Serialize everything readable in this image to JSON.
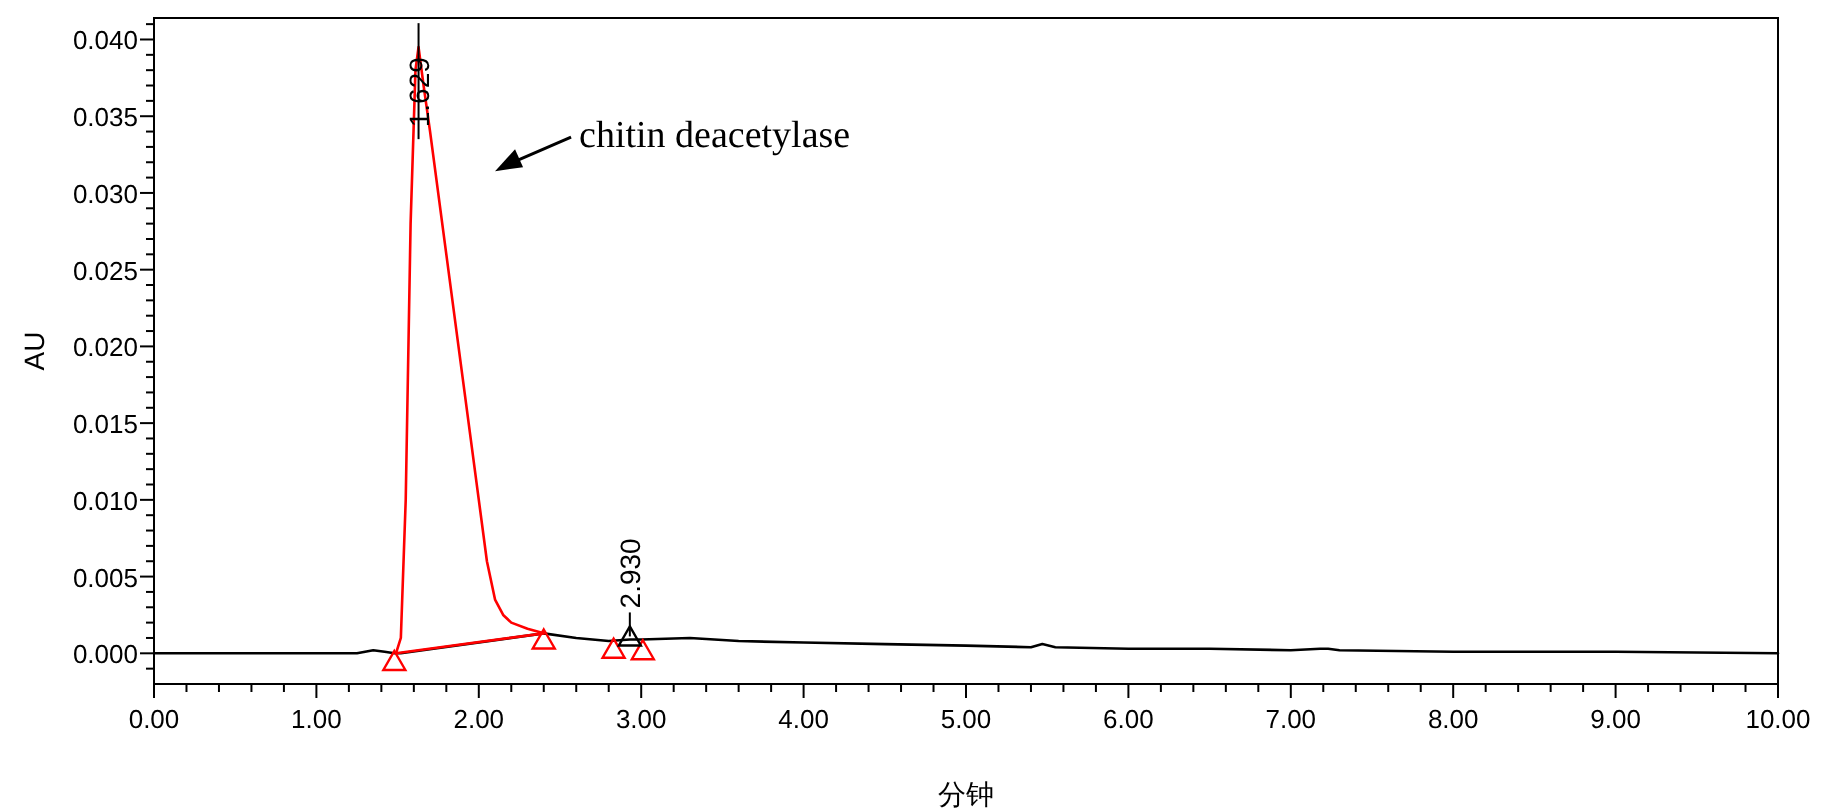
{
  "chart_data": {
    "type": "line",
    "xlabel": "分钟",
    "ylabel": "AU",
    "xlim": [
      0,
      10
    ],
    "ylim": [
      -0.002,
      0.0414
    ],
    "xticks": [
      {
        "value": 0,
        "label": "0.00"
      },
      {
        "value": 0.2,
        "label": null
      },
      {
        "value": 0.4,
        "label": null
      },
      {
        "value": 0.6,
        "label": null
      },
      {
        "value": 0.8,
        "label": null
      },
      {
        "value": 1,
        "label": "1.00"
      },
      {
        "value": 1.2,
        "label": null
      },
      {
        "value": 1.4,
        "label": null
      },
      {
        "value": 1.6,
        "label": null
      },
      {
        "value": 1.8,
        "label": null
      },
      {
        "value": 2,
        "label": "2.00"
      },
      {
        "value": 2.2,
        "label": null
      },
      {
        "value": 2.4,
        "label": null
      },
      {
        "value": 2.6,
        "label": null
      },
      {
        "value": 2.8,
        "label": null
      },
      {
        "value": 3,
        "label": "3.00"
      },
      {
        "value": 3.2,
        "label": null
      },
      {
        "value": 3.4,
        "label": null
      },
      {
        "value": 3.6,
        "label": null
      },
      {
        "value": 3.8,
        "label": null
      },
      {
        "value": 4,
        "label": "4.00"
      },
      {
        "value": 4.2,
        "label": null
      },
      {
        "value": 4.4,
        "label": null
      },
      {
        "value": 4.6,
        "label": null
      },
      {
        "value": 4.8,
        "label": null
      },
      {
        "value": 5,
        "label": "5.00"
      },
      {
        "value": 5.2,
        "label": null
      },
      {
        "value": 5.4,
        "label": null
      },
      {
        "value": 5.6,
        "label": null
      },
      {
        "value": 5.8,
        "label": null
      },
      {
        "value": 6,
        "label": "6.00"
      },
      {
        "value": 6.2,
        "label": null
      },
      {
        "value": 6.4,
        "label": null
      },
      {
        "value": 6.6,
        "label": null
      },
      {
        "value": 6.8,
        "label": null
      },
      {
        "value": 7,
        "label": "7.00"
      },
      {
        "value": 7.2,
        "label": null
      },
      {
        "value": 7.4,
        "label": null
      },
      {
        "value": 7.6,
        "label": null
      },
      {
        "value": 7.8,
        "label": null
      },
      {
        "value": 8,
        "label": "8.00"
      },
      {
        "value": 8.2,
        "label": null
      },
      {
        "value": 8.4,
        "label": null
      },
      {
        "value": 8.6,
        "label": null
      },
      {
        "value": 8.8,
        "label": null
      },
      {
        "value": 9,
        "label": "9.00"
      },
      {
        "value": 9.2,
        "label": null
      },
      {
        "value": 9.4,
        "label": null
      },
      {
        "value": 9.6,
        "label": null
      },
      {
        "value": 9.8,
        "label": null
      },
      {
        "value": 10,
        "label": "10.00"
      }
    ],
    "yticks": [
      {
        "value": -0.001,
        "label": null
      },
      {
        "value": 0,
        "label": "0.000"
      },
      {
        "value": 0.001,
        "label": null
      },
      {
        "value": 0.002,
        "label": null
      },
      {
        "value": 0.003,
        "label": null
      },
      {
        "value": 0.004,
        "label": null
      },
      {
        "value": 0.005,
        "label": "0.005"
      },
      {
        "value": 0.006,
        "label": null
      },
      {
        "value": 0.007,
        "label": null
      },
      {
        "value": 0.008,
        "label": null
      },
      {
        "value": 0.009,
        "label": null
      },
      {
        "value": 0.01,
        "label": "0.010"
      },
      {
        "value": 0.011,
        "label": null
      },
      {
        "value": 0.012,
        "label": null
      },
      {
        "value": 0.013,
        "label": null
      },
      {
        "value": 0.014,
        "label": null
      },
      {
        "value": 0.015,
        "label": "0.015"
      },
      {
        "value": 0.016,
        "label": null
      },
      {
        "value": 0.017,
        "label": null
      },
      {
        "value": 0.018,
        "label": null
      },
      {
        "value": 0.019,
        "label": null
      },
      {
        "value": 0.02,
        "label": "0.020"
      },
      {
        "value": 0.021,
        "label": null
      },
      {
        "value": 0.022,
        "label": null
      },
      {
        "value": 0.023,
        "label": null
      },
      {
        "value": 0.024,
        "label": null
      },
      {
        "value": 0.025,
        "label": "0.025"
      },
      {
        "value": 0.026,
        "label": null
      },
      {
        "value": 0.027,
        "label": null
      },
      {
        "value": 0.028,
        "label": null
      },
      {
        "value": 0.029,
        "label": null
      },
      {
        "value": 0.03,
        "label": "0.030"
      },
      {
        "value": 0.031,
        "label": null
      },
      {
        "value": 0.032,
        "label": null
      },
      {
        "value": 0.033,
        "label": null
      },
      {
        "value": 0.034,
        "label": null
      },
      {
        "value": 0.035,
        "label": "0.035"
      },
      {
        "value": 0.036,
        "label": null
      },
      {
        "value": 0.037,
        "label": null
      },
      {
        "value": 0.038,
        "label": null
      },
      {
        "value": 0.039,
        "label": null
      },
      {
        "value": 0.04,
        "label": "0.040"
      },
      {
        "value": 0.041,
        "label": null
      }
    ],
    "grid": false,
    "line_style": "solid",
    "series": [
      {
        "type": "line",
        "color": "#000000",
        "x": [
          0,
          0.5,
          1.0,
          1.25,
          1.35,
          1.42,
          1.48,
          1.52,
          2.4,
          2.6,
          2.8,
          2.93,
          3.0,
          3.3,
          3.6,
          4.0,
          4.5,
          5.0,
          5.4,
          5.47,
          5.55,
          6.0,
          6.5,
          7.0,
          7.18,
          7.23,
          7.3,
          8.0,
          9.0,
          10.0
        ],
        "values": [
          0,
          0,
          0,
          0,
          0.0002,
          0.0001,
          0,
          0,
          0.0013,
          0.001,
          0.0008,
          0.0009,
          0.0009,
          0.001,
          0.0008,
          0.0007,
          0.0006,
          0.0005,
          0.0004,
          0.0006,
          0.0004,
          0.0003,
          0.0003,
          0.0002,
          0.0003,
          0.0003,
          0.0002,
          0.0001,
          0.0001,
          0
        ]
      },
      {
        "type": "line",
        "color": "#ff0000",
        "x": [
          1.49,
          1.52,
          1.55,
          1.58,
          1.61,
          1.629,
          1.66,
          1.7,
          1.8,
          1.9,
          2.0,
          2.05,
          2.1,
          2.15,
          2.2,
          2.3,
          2.4
        ],
        "values": [
          0,
          0.001,
          0.01,
          0.028,
          0.038,
          0.0395,
          0.037,
          0.034,
          0.026,
          0.018,
          0.01,
          0.006,
          0.0035,
          0.0025,
          0.002,
          0.0016,
          0.0013
        ]
      },
      {
        "type": "line",
        "color": "#ff0000",
        "x": [
          1.49,
          2.4
        ],
        "values": [
          0,
          0.0013
        ]
      },
      {
        "type": "scatter",
        "marker": "triangle",
        "color": "#ff0000",
        "x": [
          1.48,
          2.4,
          2.83,
          3.01
        ],
        "values": [
          -0.0005,
          0.0009,
          0.0003,
          0.0002
        ]
      },
      {
        "type": "scatter",
        "marker": "triangle",
        "color": "#000000",
        "x": [
          2.93
        ],
        "values": [
          0.0011
        ]
      }
    ],
    "annotations": [
      {
        "text": "1.629",
        "x": 1.629,
        "y": 0.0395
      },
      {
        "text": "2.930",
        "x": 2.93,
        "y": 0.0011
      },
      "chitin deacetylase"
    ]
  }
}
